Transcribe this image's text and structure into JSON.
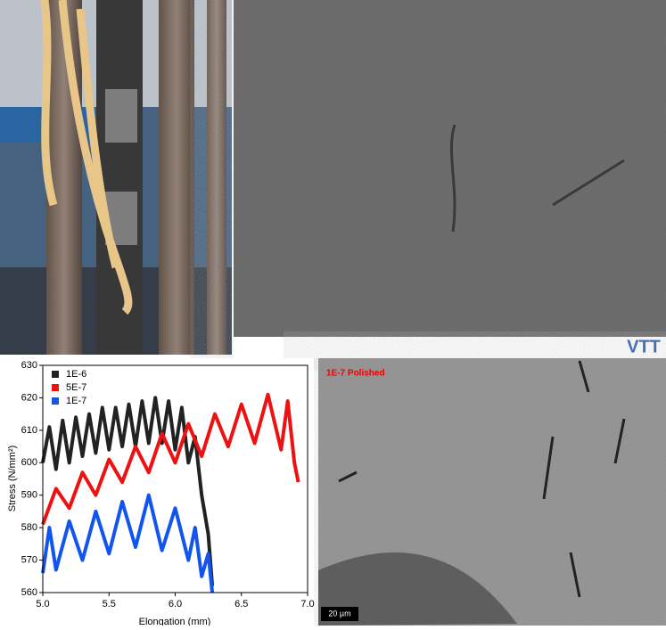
{
  "chart_data": {
    "type": "line",
    "x_label": "Elongation (mm)",
    "y_label": "Stress (N/mm²)",
    "xlim": [
      5,
      7
    ],
    "xticks": [
      {
        "value": 5,
        "label": "5.0"
      },
      {
        "value": 5.5,
        "label": "5.5"
      },
      {
        "value": 6,
        "label": "6.0"
      },
      {
        "value": 6.5,
        "label": "6.5"
      },
      {
        "value": 7,
        "label": "7.0"
      }
    ],
    "ylim": [
      560,
      630
    ],
    "yticks": [
      560,
      570,
      580,
      590,
      600,
      610,
      620,
      630
    ],
    "legend": "upper-left",
    "series": [
      {
        "name": "1E-6",
        "color": "#222222",
        "x": [
          5.0,
          5.05,
          5.1,
          5.15,
          5.2,
          5.25,
          5.3,
          5.35,
          5.4,
          5.45,
          5.5,
          5.55,
          5.6,
          5.65,
          5.7,
          5.75,
          5.8,
          5.85,
          5.9,
          5.95,
          6.0,
          6.05,
          6.1,
          6.15,
          6.2,
          6.25,
          6.28
        ],
        "values": [
          600,
          611,
          598,
          613,
          600,
          614,
          602,
          615,
          603,
          617,
          604,
          617,
          605,
          618,
          605,
          619,
          606,
          620,
          606,
          619,
          604,
          617,
          600,
          608,
          590,
          578,
          562
        ]
      },
      {
        "name": "5E-7",
        "color": "#ee1111",
        "x": [
          5.0,
          5.1,
          5.2,
          5.3,
          5.4,
          5.5,
          5.6,
          5.7,
          5.8,
          5.9,
          6.0,
          6.1,
          6.2,
          6.3,
          6.4,
          6.5,
          6.6,
          6.7,
          6.8,
          6.85,
          6.9,
          6.93
        ],
        "values": [
          581,
          592,
          586,
          597,
          590,
          601,
          594,
          605,
          597,
          609,
          600,
          612,
          602,
          615,
          605,
          618,
          606,
          621,
          604,
          619,
          600,
          594
        ]
      },
      {
        "name": "1E-7",
        "color": "#1155ee",
        "x": [
          5.0,
          5.05,
          5.1,
          5.2,
          5.3,
          5.4,
          5.5,
          5.6,
          5.7,
          5.8,
          5.9,
          6.0,
          6.1,
          6.15,
          6.2,
          6.25,
          6.28
        ],
        "values": [
          566,
          580,
          567,
          582,
          570,
          585,
          572,
          588,
          574,
          590,
          573,
          586,
          570,
          580,
          565,
          572,
          560
        ]
      }
    ]
  },
  "sem_top": {
    "logo": "VTT"
  },
  "sem_bottom": {
    "label": "1E-7 Polished",
    "scale_bar": "20 µm"
  }
}
